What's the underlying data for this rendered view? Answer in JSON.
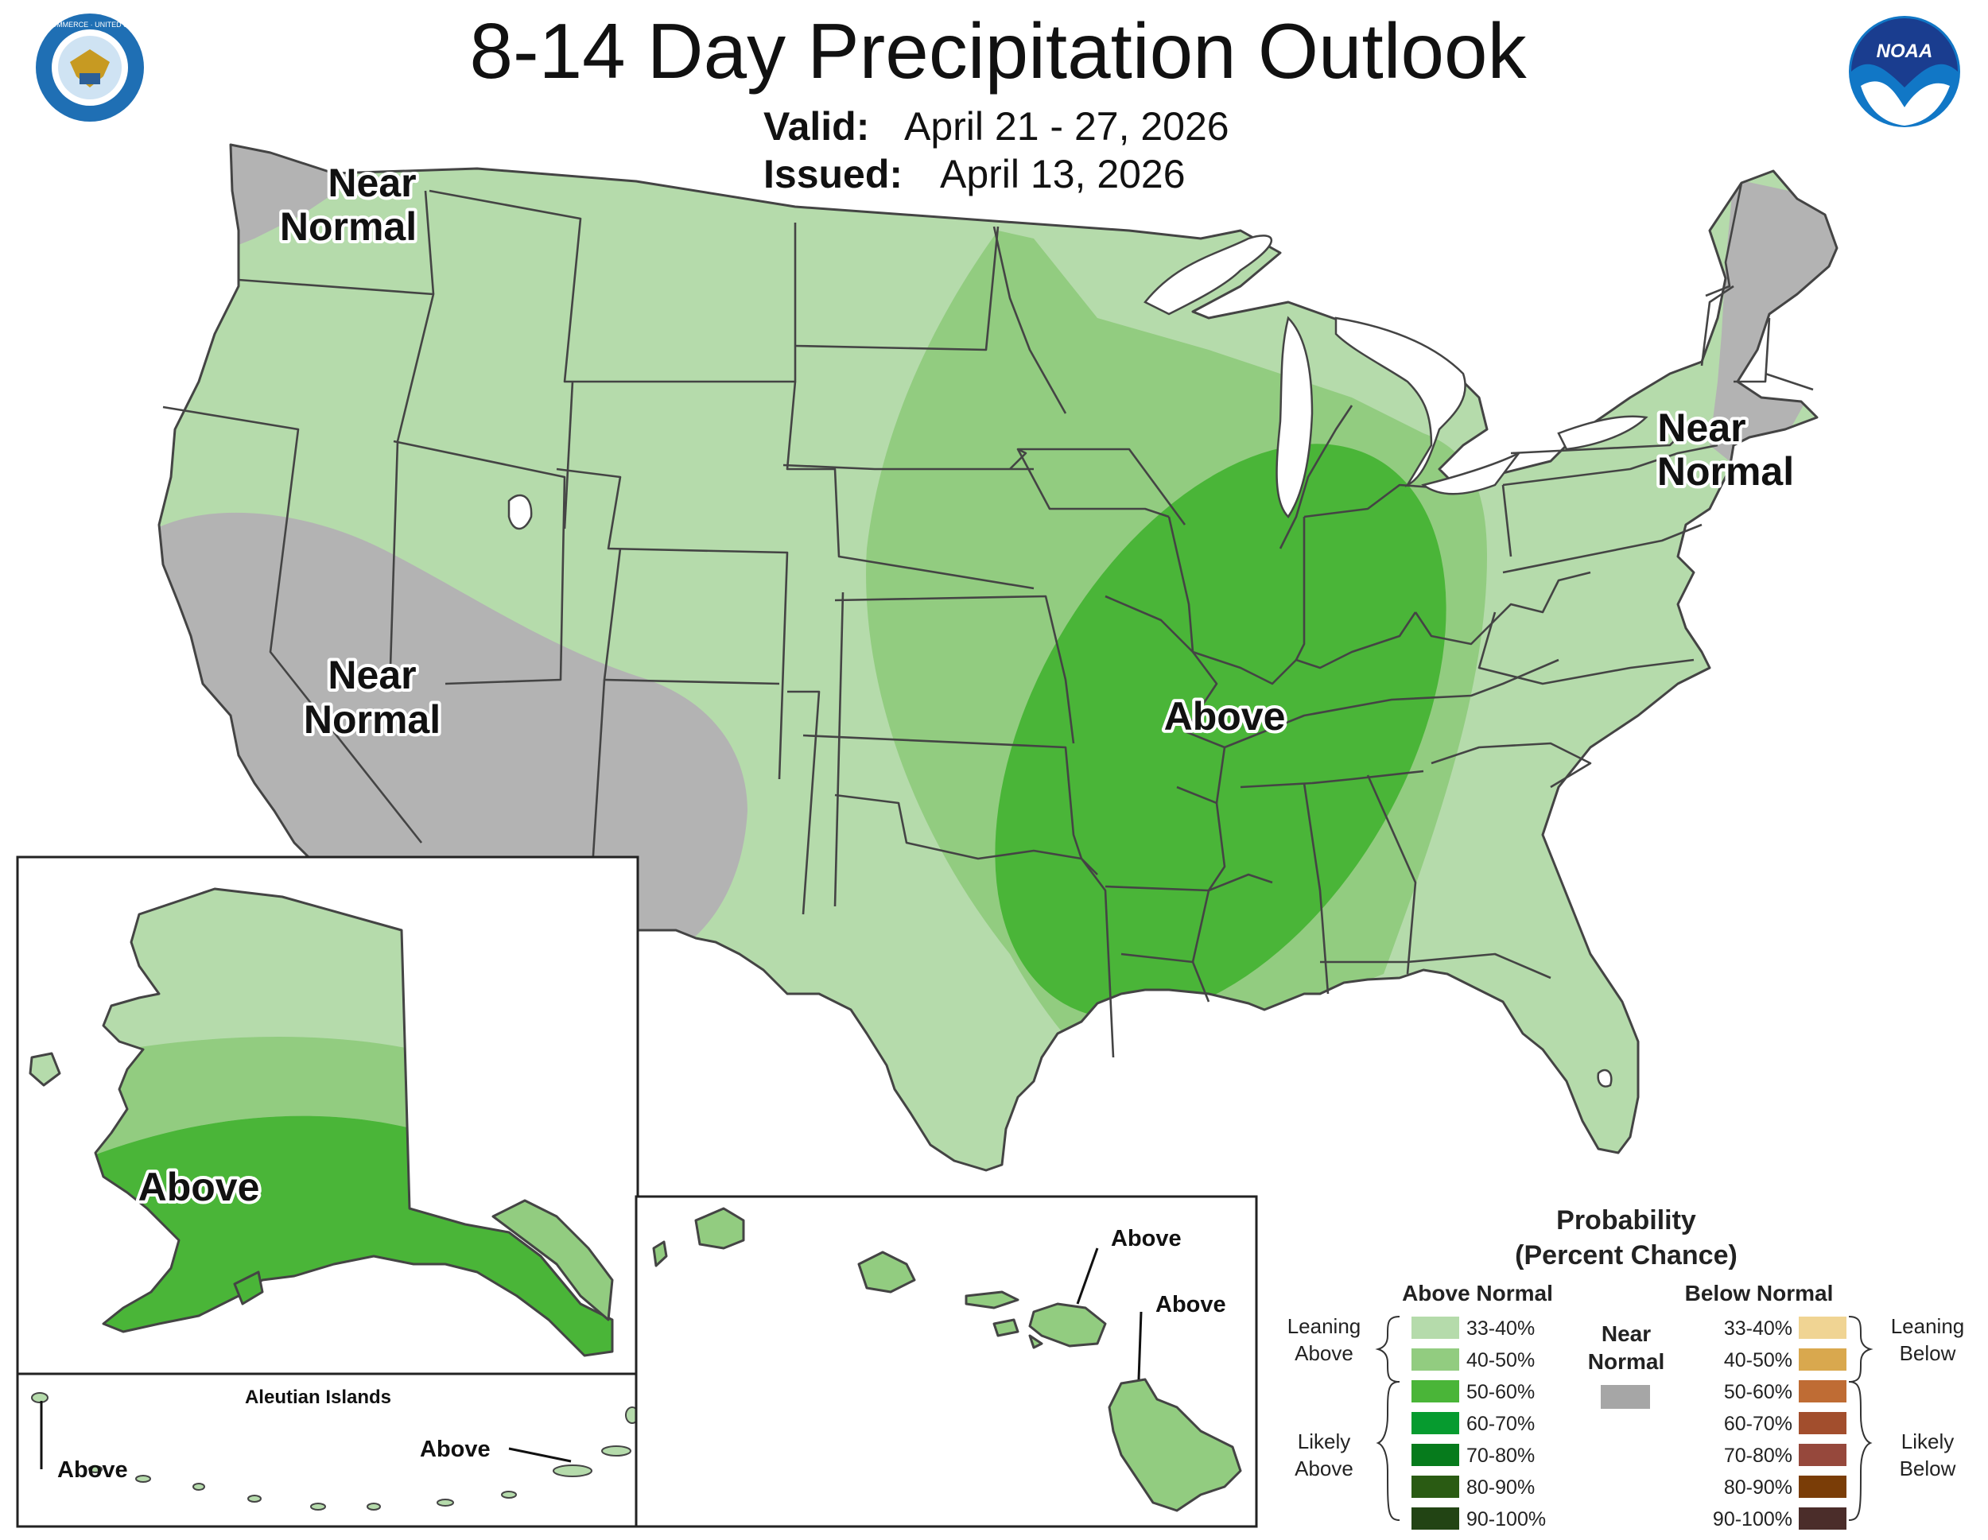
{
  "header": {
    "title": "8-14 Day Precipitation Outlook",
    "valid_label": "Valid:",
    "valid_value": "April 21 - 27, 2026",
    "issued_label": "Issued:",
    "issued_value": "April 13, 2026"
  },
  "logos": {
    "commerce_seal_text": "DEPARTMENT OF COMMERCE · UNITED STATES OF AMERICA",
    "noaa_text": "NOAA"
  },
  "map": {
    "labels": {
      "near_normal_nw_1": "Near",
      "near_normal_nw_2": "Normal",
      "near_normal_sw_1": "Near",
      "near_normal_sw_2": "Normal",
      "near_normal_ne_1": "Near",
      "near_normal_ne_2": "Normal",
      "above_center": "Above"
    },
    "colors": {
      "lean_above": "#b5dbab",
      "above_40_50": "#92cc80",
      "above_50_60": "#4ab538",
      "near_normal": "#b3b3b3"
    }
  },
  "alaska": {
    "label": "Above",
    "aleutian_title": "Aleutian Islands",
    "aleutian_left": "Above",
    "aleutian_right": "Above"
  },
  "hawaii": {
    "label_1": "Above",
    "label_2": "Above"
  },
  "legend": {
    "title_1": "Probability",
    "title_2": "(Percent Chance)",
    "above_header": "Above Normal",
    "below_header": "Below Normal",
    "near_1": "Near",
    "near_2": "Normal",
    "near_color": "#a6a6a6",
    "leaning_above_1": "Leaning",
    "leaning_above_2": "Above",
    "likely_above_1": "Likely",
    "likely_above_2": "Above",
    "leaning_below_1": "Leaning",
    "leaning_below_2": "Below",
    "likely_below_1": "Likely",
    "likely_below_2": "Below",
    "above": [
      {
        "label": "33-40%",
        "color": "#b5dbab"
      },
      {
        "label": "40-50%",
        "color": "#92cc80"
      },
      {
        "label": "50-60%",
        "color": "#4ab538"
      },
      {
        "label": "60-70%",
        "color": "#069b2f"
      },
      {
        "label": "70-80%",
        "color": "#067b1c"
      },
      {
        "label": "80-90%",
        "color": "#2a5b13"
      },
      {
        "label": "90-100%",
        "color": "#224414"
      }
    ],
    "below": [
      {
        "label": "33-40%",
        "color": "#f0d493"
      },
      {
        "label": "40-50%",
        "color": "#d9a84e"
      },
      {
        "label": "50-60%",
        "color": "#bf6c34"
      },
      {
        "label": "60-70%",
        "color": "#a24e2d"
      },
      {
        "label": "70-80%",
        "color": "#96483c"
      },
      {
        "label": "80-90%",
        "color": "#7a3d07"
      },
      {
        "label": "90-100%",
        "color": "#4b2d2a"
      }
    ]
  }
}
